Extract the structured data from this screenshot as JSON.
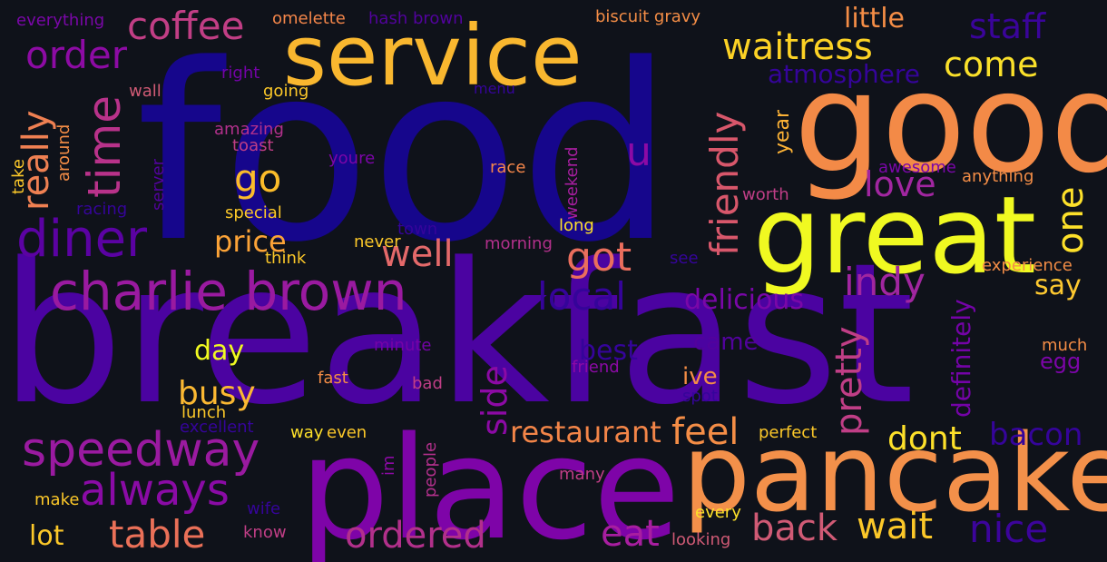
{
  "background": "#0f121a",
  "words": [
    {
      "text": "food",
      "color": "#16068c"
    },
    {
      "text": "breakfast",
      "color": "#4b03a1"
    },
    {
      "text": "service",
      "color": "#f9b72f"
    },
    {
      "text": "good",
      "color": "#f38a47"
    },
    {
      "text": "great",
      "color": "#f0f921"
    },
    {
      "text": "place",
      "color": "#7e04a8"
    },
    {
      "text": "pancake",
      "color": "#f3904a"
    },
    {
      "text": "charlie brown",
      "color": "#9a1aa0"
    },
    {
      "text": "speedway",
      "color": "#9a1aa0"
    },
    {
      "text": "diner",
      "color": "#5b02a3"
    },
    {
      "text": "time",
      "color": "#b8328a"
    },
    {
      "text": "coffee",
      "color": "#c13e85"
    },
    {
      "text": "order",
      "color": "#8d0ba4"
    },
    {
      "text": "waitress",
      "color": "#fcd225"
    },
    {
      "text": "staff",
      "color": "#3a049a"
    },
    {
      "text": "come",
      "color": "#fae02a"
    },
    {
      "text": "really",
      "color": "#ef8052"
    },
    {
      "text": "friendly",
      "color": "#d8576b"
    },
    {
      "text": "go",
      "color": "#fbbc2a"
    },
    {
      "text": "well",
      "color": "#e4696a"
    },
    {
      "text": "got",
      "color": "#ea6e5d"
    },
    {
      "text": "love",
      "color": "#a126a0"
    },
    {
      "text": "one",
      "color": "#fde02a"
    },
    {
      "text": "indy",
      "color": "#a126a0"
    },
    {
      "text": "local",
      "color": "#350499"
    },
    {
      "text": "price",
      "color": "#fca337"
    },
    {
      "text": "delicious",
      "color": "#7a07a8"
    },
    {
      "text": "pretty",
      "color": "#c03e86"
    },
    {
      "text": "always",
      "color": "#8a0ba5"
    },
    {
      "text": "table",
      "color": "#ea7058"
    },
    {
      "text": "ordered",
      "color": "#b2308b"
    },
    {
      "text": "eat",
      "color": "#a81ea0"
    },
    {
      "text": "back",
      "color": "#d05a75"
    },
    {
      "text": "wait",
      "color": "#fcc829"
    },
    {
      "text": "nice",
      "color": "#3c049b"
    },
    {
      "text": "restaurant",
      "color": "#f38548"
    },
    {
      "text": "feel",
      "color": "#f48d46"
    },
    {
      "text": "dont",
      "color": "#fde02a"
    },
    {
      "text": "bacon",
      "color": "#35049a"
    },
    {
      "text": "busy",
      "color": "#fbb832"
    },
    {
      "text": "day",
      "color": "#f0f921"
    },
    {
      "text": "side",
      "color": "#8c0aa5"
    },
    {
      "text": "say",
      "color": "#fdc830"
    },
    {
      "text": "definitely",
      "color": "#7403a7"
    },
    {
      "text": "egg",
      "color": "#7c05a8"
    },
    {
      "text": "best",
      "color": "#35049a"
    },
    {
      "text": "came",
      "color": "#52029d"
    },
    {
      "text": "ive",
      "color": "#f48d46"
    },
    {
      "text": "u",
      "color": "#8c0aa5"
    },
    {
      "text": "little",
      "color": "#f48d46"
    },
    {
      "text": "atmosphere",
      "color": "#35049a"
    },
    {
      "text": "year",
      "color": "#fcb236"
    },
    {
      "text": "everything",
      "color": "#7a07a8"
    },
    {
      "text": "omelette",
      "color": "#f4864a"
    },
    {
      "text": "hash brown",
      "color": "#52029d"
    },
    {
      "text": "biscuit gravy",
      "color": "#f48d46"
    },
    {
      "text": "right",
      "color": "#7403a7"
    },
    {
      "text": "wall",
      "color": "#d05a75"
    },
    {
      "text": "going",
      "color": "#fcc829"
    },
    {
      "text": "menu",
      "color": "#35049a"
    },
    {
      "text": "amazing",
      "color": "#b2308b"
    },
    {
      "text": "toast",
      "color": "#c03e86"
    },
    {
      "text": "youre",
      "color": "#7c05a8"
    },
    {
      "text": "race",
      "color": "#f4864a"
    },
    {
      "text": "weekend",
      "color": "#a81ea0"
    },
    {
      "text": "awesome",
      "color": "#7a07a8"
    },
    {
      "text": "anything",
      "color": "#f48d46"
    },
    {
      "text": "worth",
      "color": "#c03e86"
    },
    {
      "text": "take",
      "color": "#fcc829"
    },
    {
      "text": "around",
      "color": "#f48d46"
    },
    {
      "text": "server",
      "color": "#52029d"
    },
    {
      "text": "racing",
      "color": "#35049a"
    },
    {
      "text": "special",
      "color": "#fcc829"
    },
    {
      "text": "town",
      "color": "#35049a"
    },
    {
      "text": "long",
      "color": "#fde02a"
    },
    {
      "text": "never",
      "color": "#fcc829"
    },
    {
      "text": "morning",
      "color": "#b2308b"
    },
    {
      "text": "see",
      "color": "#35049a"
    },
    {
      "text": "think",
      "color": "#fcc829"
    },
    {
      "text": "experience",
      "color": "#f48d46"
    },
    {
      "text": "minute",
      "color": "#7403a7"
    },
    {
      "text": "friend",
      "color": "#8c0aa5"
    },
    {
      "text": "fast",
      "color": "#f48d46"
    },
    {
      "text": "bad",
      "color": "#c03e86"
    },
    {
      "text": "much",
      "color": "#f48d46"
    },
    {
      "text": "spot",
      "color": "#35049a"
    },
    {
      "text": "lunch",
      "color": "#fcc829"
    },
    {
      "text": "excellent",
      "color": "#35049a"
    },
    {
      "text": "way",
      "color": "#fde02a"
    },
    {
      "text": "even",
      "color": "#fcc829"
    },
    {
      "text": "perfect",
      "color": "#fcc829"
    },
    {
      "text": "im",
      "color": "#8c0aa5"
    },
    {
      "text": "people",
      "color": "#b2308b"
    },
    {
      "text": "many",
      "color": "#c03e86"
    },
    {
      "text": "make",
      "color": "#fcc829"
    },
    {
      "text": "wife",
      "color": "#35049a"
    },
    {
      "text": "know",
      "color": "#c03e86"
    },
    {
      "text": "lot",
      "color": "#fcc829"
    },
    {
      "text": "every",
      "color": "#fde02a"
    },
    {
      "text": "looking",
      "color": "#d05a75"
    }
  ]
}
